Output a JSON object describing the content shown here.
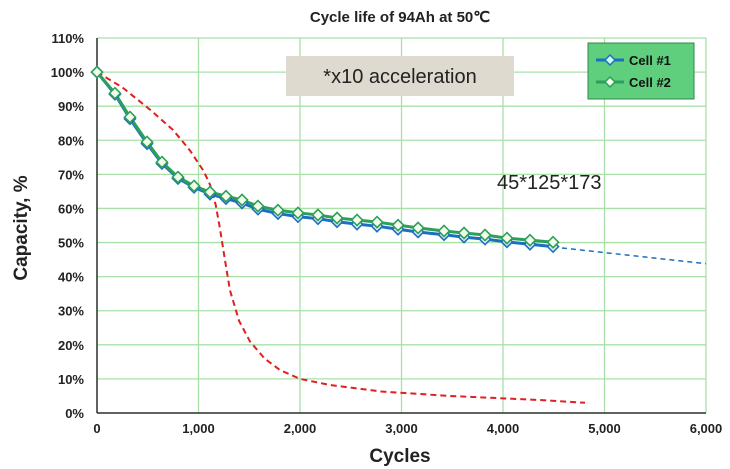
{
  "chart_data": {
    "type": "line",
    "title": "Cycle life of 94Ah at  50℃",
    "xlabel": "Cycles",
    "ylabel": "Capacity, %",
    "xlim": [
      0,
      6000
    ],
    "ylim": [
      0,
      110
    ],
    "xticks": [
      "0",
      "1,000",
      "2,000",
      "3,000",
      "4,000",
      "5,000",
      "6,000"
    ],
    "yticks": [
      "0%",
      "10%",
      "20%",
      "30%",
      "40%",
      "50%",
      "60%",
      "70%",
      "80%",
      "90%",
      "100%",
      "110%"
    ],
    "grid": true,
    "legend_position": "top-right",
    "annotations": [
      "*x10 acceleration",
      "45*125*173"
    ],
    "series": [
      {
        "name": "Cell #1",
        "color": "#1f6fc0",
        "x": [
          0,
          177,
          325,
          493,
          640,
          798,
          956,
          1113,
          1271,
          1429,
          1586,
          1783,
          1980,
          2177,
          2365,
          2562,
          2759,
          2966,
          3163,
          3419,
          3616,
          3823,
          4039,
          4266,
          4493
        ],
        "y": [
          100,
          93.5,
          86.3,
          79,
          73.2,
          68.8,
          66.2,
          64.2,
          62.9,
          61.6,
          59.8,
          58.5,
          57.6,
          57,
          56.1,
          55.4,
          54.8,
          53.9,
          53.1,
          52.3,
          51.6,
          51,
          50.2,
          49.5,
          48.8
        ]
      },
      {
        "name": "Cell #2",
        "color": "#2ca05a",
        "x": [
          0,
          177,
          325,
          493,
          640,
          798,
          956,
          1113,
          1271,
          1429,
          1586,
          1783,
          1980,
          2177,
          2365,
          2562,
          2759,
          2966,
          3163,
          3419,
          3616,
          3823,
          4039,
          4266,
          4493
        ],
        "y": [
          100,
          93.8,
          86.8,
          79.5,
          73.6,
          69.2,
          66.6,
          64.8,
          63.6,
          62.5,
          60.7,
          59.5,
          58.7,
          58.1,
          57.2,
          56.6,
          56,
          55.1,
          54.3,
          53.4,
          52.8,
          52.2,
          51.3,
          50.7,
          50.1
        ]
      },
      {
        "color": "#e02020",
        "style": "dashed",
        "x": [
          0,
          250,
          522,
          750,
          916,
          1050,
          1113,
          1170,
          1212,
          1260,
          1310,
          1400,
          1507,
          1650,
          1803,
          2000,
          2296,
          2800,
          3478,
          4000,
          4365,
          4808
        ],
        "y": [
          100,
          95.5,
          89,
          83,
          77,
          71,
          67,
          61,
          54,
          45,
          36,
          27,
          21,
          16,
          12.6,
          10,
          8.2,
          6.3,
          5,
          4.3,
          3.8,
          3
        ]
      },
      {
        "color": "#1f6fc0",
        "style": "dashed",
        "x": [
          4493,
          6000
        ],
        "y": [
          48.7,
          43.8
        ]
      }
    ]
  }
}
